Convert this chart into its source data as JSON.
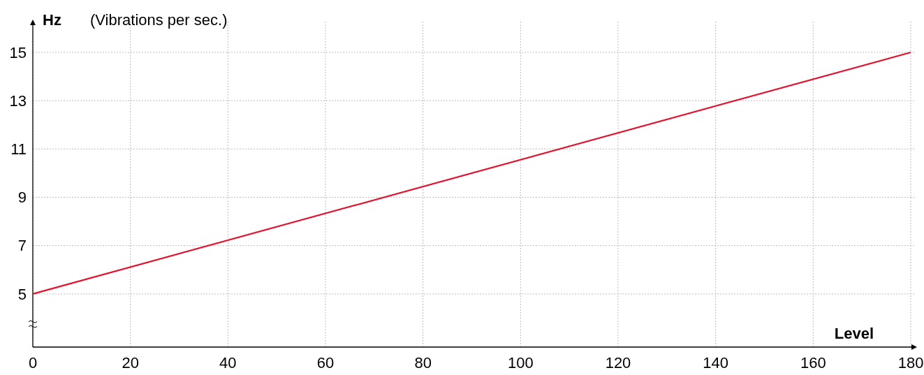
{
  "chart_data": {
    "type": "line",
    "ylabel": "Hz",
    "xlabel": "Level",
    "annotations": [
      "(Vibrations per sec.)"
    ],
    "x": [
      0,
      180
    ],
    "series": [
      {
        "color": "#e3122d",
        "values": [
          5,
          15
        ]
      }
    ],
    "xlim": [
      0,
      181
    ],
    "ylim": [
      2.8,
      16.3
    ],
    "xticks": [
      0,
      20,
      40,
      60,
      80,
      100,
      120,
      140,
      160,
      180
    ],
    "yticks": [
      5,
      7,
      9,
      11,
      13,
      15
    ],
    "grid": true,
    "marker": "none",
    "line_style": "solid"
  }
}
